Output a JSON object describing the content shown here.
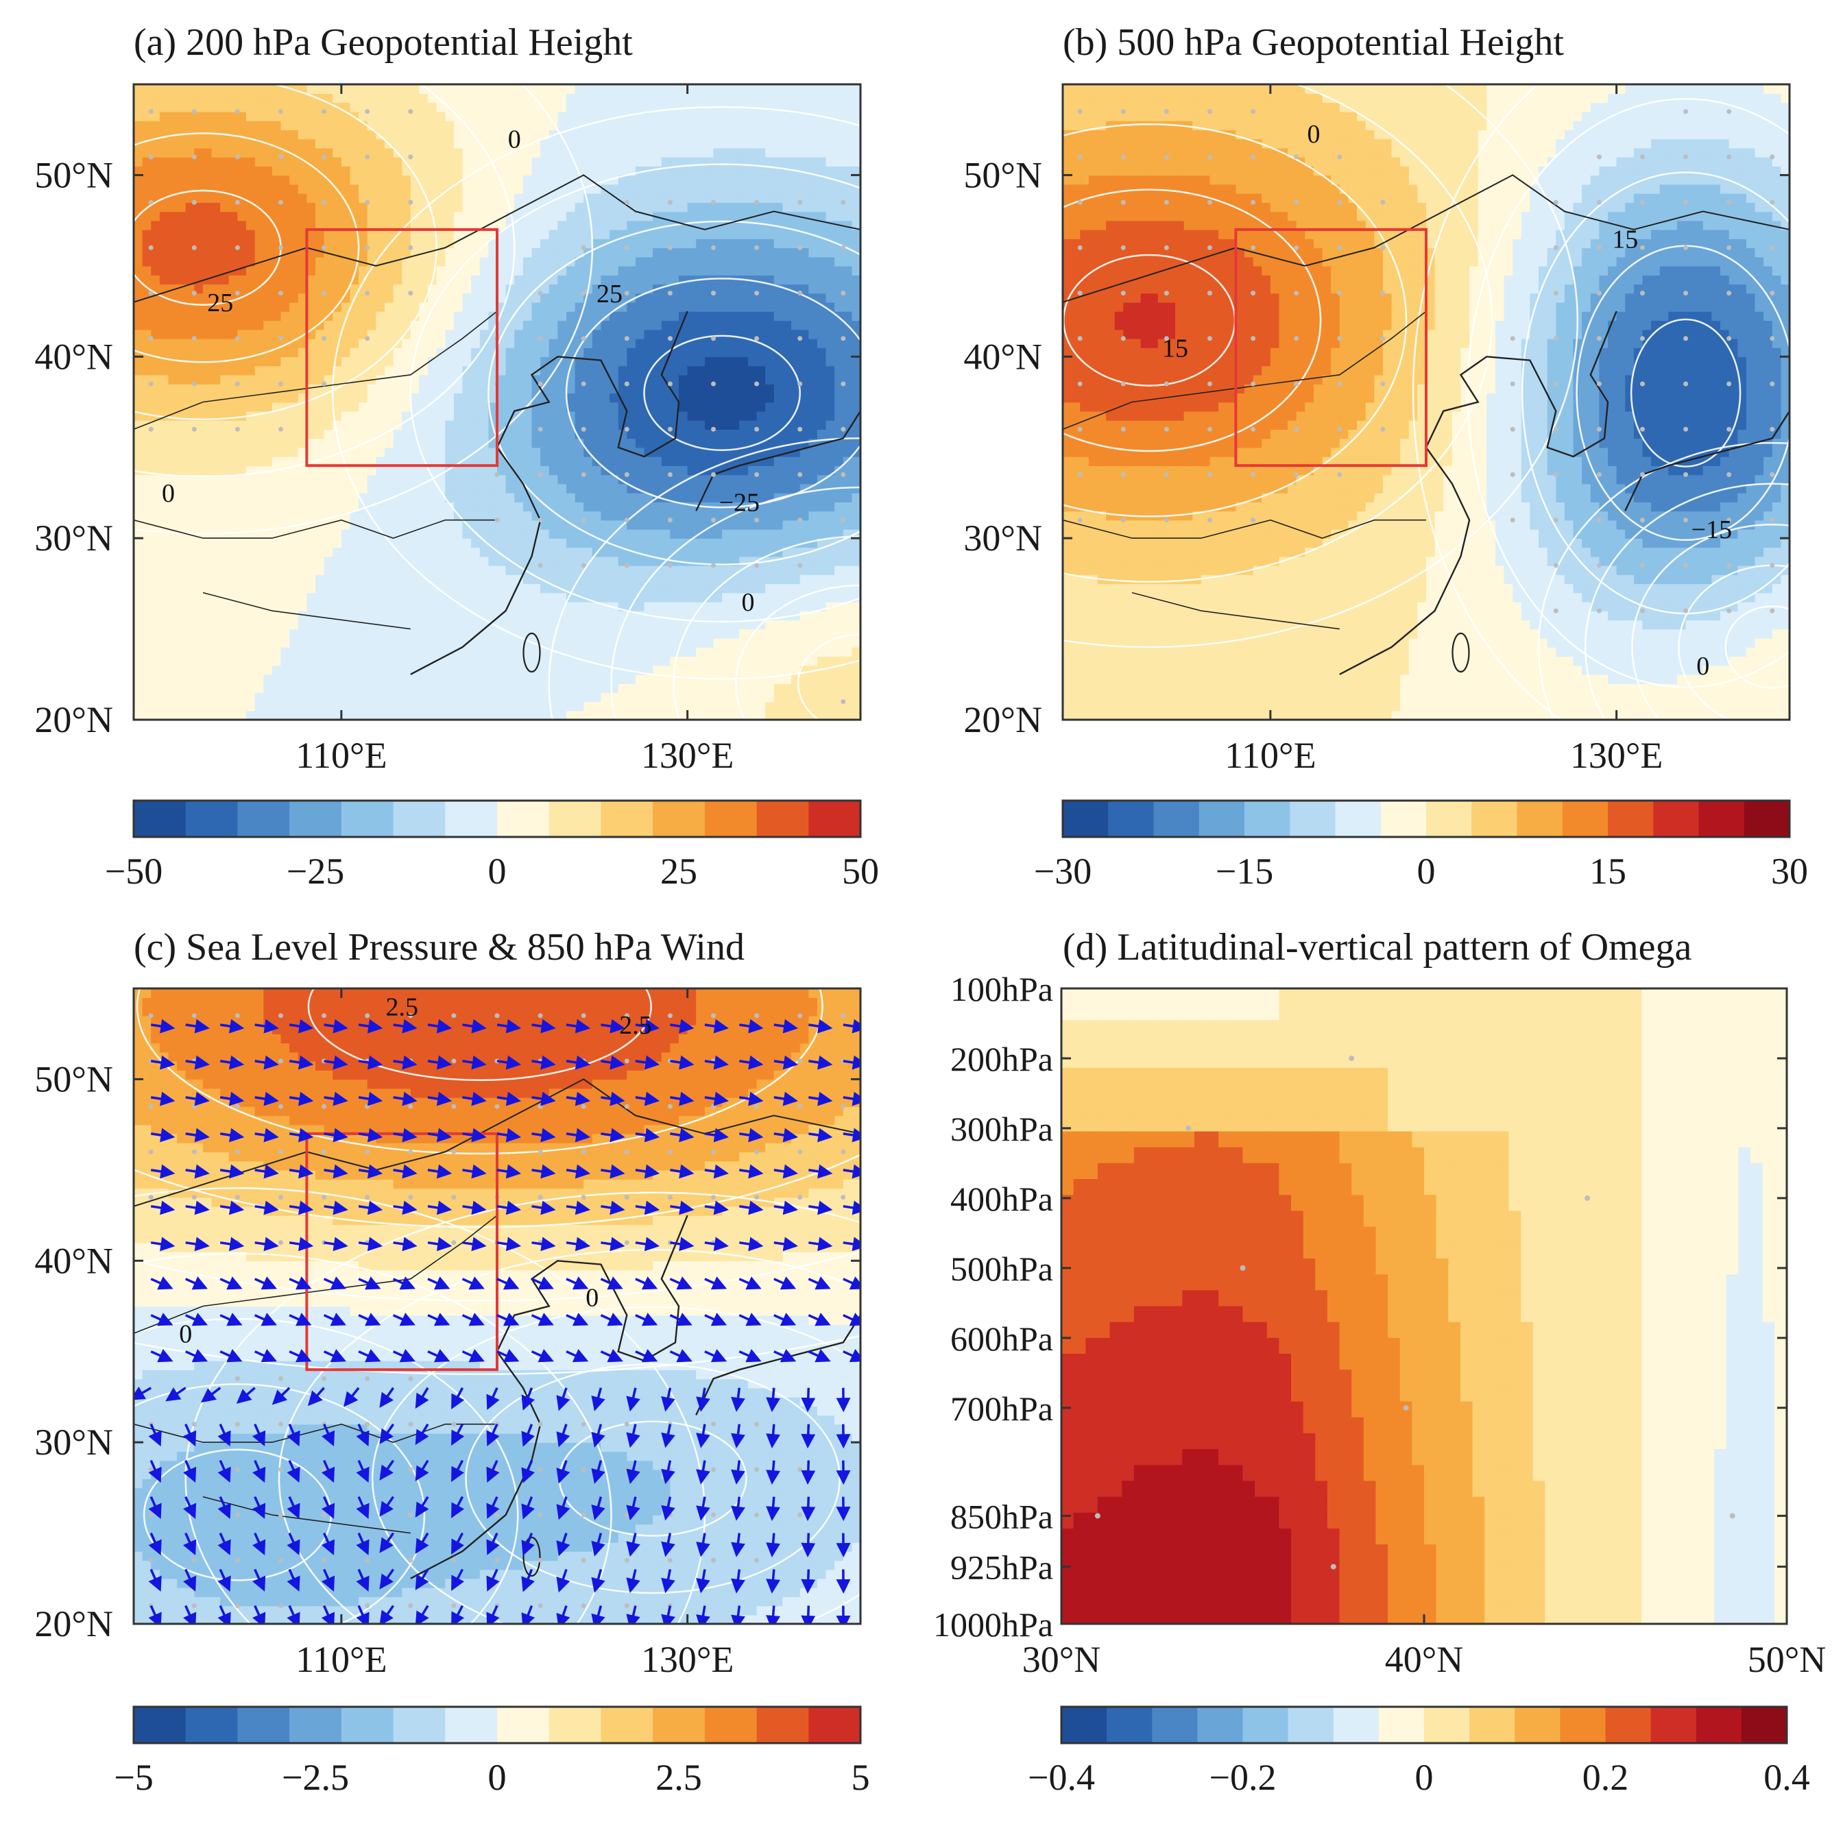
{
  "palette": {
    "ten": [
      "#1f4e98",
      "#2f68b2",
      "#4a86c6",
      "#6aa5d8",
      "#8ec3e8",
      "#b5daf2",
      "#dbeefa",
      "#fff8dc",
      "#fde8a8",
      "#fbcf72",
      "#f7ad43",
      "#f28a2c",
      "#e45a24",
      "#cf2e25"
    ],
    "seven": [
      "#1f4e98",
      "#2f68b2",
      "#4a86c6",
      "#6aa5d8",
      "#8ec3e8",
      "#b5daf2",
      "#dbeefa",
      "#fff8dc",
      "#fde8a8",
      "#fbcf72",
      "#f7ad43",
      "#f28a2c",
      "#e45a24",
      "#cf2e25",
      "#b3151e",
      "#8e0b18"
    ],
    "box": "#e53935",
    "wind": "#1515e0",
    "contour": "#ffffff",
    "dots": "#bdbdbd"
  },
  "chart_data": [
    {
      "id": "a",
      "type": "heatmap",
      "title": "(a) 200 hPa Geopotential Height",
      "xlim": [
        98,
        140
      ],
      "ylim": [
        20,
        55
      ],
      "xticks": [
        {
          "value": 110,
          "label": "110°E"
        },
        {
          "value": 130,
          "label": "130°E"
        }
      ],
      "yticks": [
        {
          "value": 20,
          "label": "20°N"
        },
        {
          "value": 30,
          "label": "30°N"
        },
        {
          "value": 40,
          "label": "40°N"
        },
        {
          "value": 50,
          "label": "50°N"
        }
      ],
      "box": {
        "lon": [
          108,
          119
        ],
        "lat": [
          34,
          47
        ]
      },
      "centers": [
        {
          "lon": 102,
          "lat": 46,
          "value": 38,
          "sx": 10,
          "sy": 7
        },
        {
          "lon": 132,
          "lat": 38,
          "value": -45,
          "sx": 10,
          "sy": 7
        },
        {
          "lon": 140,
          "lat": 22,
          "value": 12,
          "sx": 8,
          "sy": 6
        }
      ],
      "contour_labels": [
        {
          "text": "25",
          "lon": 103,
          "lat": 42.5
        },
        {
          "text": "0",
          "lon": 120,
          "lat": 51.5
        },
        {
          "text": "25",
          "lon": 125.5,
          "lat": 43
        },
        {
          "text": "0",
          "lon": 100,
          "lat": 32
        },
        {
          "text": "−25",
          "lon": 133,
          "lat": 31.5
        },
        {
          "text": "0",
          "lon": 133.5,
          "lat": 26
        }
      ],
      "colorbar": {
        "min": -50,
        "max": 50,
        "levels": 14,
        "ticks": [
          {
            "value": -50,
            "label": "−50"
          },
          {
            "value": -25,
            "label": "−25"
          },
          {
            "value": 0,
            "label": "0"
          },
          {
            "value": 25,
            "label": "25"
          },
          {
            "value": 50,
            "label": "50"
          }
        ]
      }
    },
    {
      "id": "b",
      "type": "heatmap",
      "title": "(b) 500 hPa Geopotential Height",
      "xlim": [
        98,
        140
      ],
      "ylim": [
        20,
        55
      ],
      "xticks": [
        {
          "value": 110,
          "label": "110°E"
        },
        {
          "value": 130,
          "label": "130°E"
        }
      ],
      "yticks": [
        {
          "value": 20,
          "label": "20°N"
        },
        {
          "value": 30,
          "label": "30°N"
        },
        {
          "value": 40,
          "label": "40°N"
        },
        {
          "value": 50,
          "label": "50°N"
        }
      ],
      "box": {
        "lon": [
          108,
          119
        ],
        "lat": [
          34,
          47
        ]
      },
      "centers": [
        {
          "lon": 103,
          "lat": 42,
          "value": 19,
          "sx": 11,
          "sy": 8
        },
        {
          "lon": 134,
          "lat": 38,
          "value": -26,
          "sx": 7,
          "sy": 9
        },
        {
          "lon": 139,
          "lat": 24,
          "value": 3,
          "sx": 6,
          "sy": 5
        }
      ],
      "contour_labels": [
        {
          "text": "0",
          "lon": 112.5,
          "lat": 51.8
        },
        {
          "text": "15",
          "lon": 104.5,
          "lat": 40
        },
        {
          "text": "15",
          "lon": 130.5,
          "lat": 46
        },
        {
          "text": "−15",
          "lon": 135.5,
          "lat": 30
        },
        {
          "text": "0",
          "lon": 135,
          "lat": 22.5
        }
      ],
      "colorbar": {
        "min": -30,
        "max": 30,
        "levels": 16,
        "ticks": [
          {
            "value": -30,
            "label": "−30"
          },
          {
            "value": -15,
            "label": "−15"
          },
          {
            "value": 0,
            "label": "0"
          },
          {
            "value": 15,
            "label": "15"
          },
          {
            "value": 30,
            "label": "30"
          }
        ]
      }
    },
    {
      "id": "c",
      "type": "heatmap",
      "title": "(c) Sea Level Pressure & 850 hPa Wind",
      "xlim": [
        98,
        140
      ],
      "ylim": [
        20,
        55
      ],
      "xticks": [
        {
          "value": 110,
          "label": "110°E"
        },
        {
          "value": 130,
          "label": "130°E"
        }
      ],
      "yticks": [
        {
          "value": 20,
          "label": "20°N"
        },
        {
          "value": 30,
          "label": "30°N"
        },
        {
          "value": 40,
          "label": "40°N"
        },
        {
          "value": 50,
          "label": "50°N"
        }
      ],
      "box": {
        "lon": [
          108,
          119
        ],
        "lat": [
          34,
          47
        ]
      },
      "centers": [
        {
          "lon": 118,
          "lat": 54,
          "value": 4.2,
          "sx": 22,
          "sy": 9
        },
        {
          "lon": 104,
          "lat": 26,
          "value": -1.6,
          "sx": 12,
          "sy": 8
        },
        {
          "lon": 128,
          "lat": 28,
          "value": -1.3,
          "sx": 12,
          "sy": 7
        }
      ],
      "contour_labels": [
        {
          "text": "2.5",
          "lon": 113.5,
          "lat": 53.5
        },
        {
          "text": "2.5",
          "lon": 127,
          "lat": 52.5
        },
        {
          "text": "0",
          "lon": 101,
          "lat": 35.5
        },
        {
          "text": "0",
          "lon": 124.5,
          "lat": 37.5
        }
      ],
      "colorbar": {
        "min": -5,
        "max": 5,
        "levels": 14,
        "ticks": [
          {
            "value": -5,
            "label": "−5"
          },
          {
            "value": -2.5,
            "label": "−2.5"
          },
          {
            "value": 0,
            "label": "0"
          },
          {
            "value": 2.5,
            "label": "2.5"
          },
          {
            "value": 5,
            "label": "5"
          }
        ]
      }
    },
    {
      "id": "d",
      "type": "heatmap",
      "title": "(d) Latitudinal-vertical pattern of Omega",
      "xlim": [
        30,
        50
      ],
      "xticks": [
        {
          "value": 30,
          "label": "30°N"
        },
        {
          "value": 40,
          "label": "40°N"
        },
        {
          "value": 50,
          "label": "50°N"
        }
      ],
      "ylevels": [
        {
          "value": 100,
          "label": "100hPa"
        },
        {
          "value": 200,
          "label": "200hPa"
        },
        {
          "value": 300,
          "label": "300hPa"
        },
        {
          "value": 400,
          "label": "400hPa"
        },
        {
          "value": 500,
          "label": "500hPa"
        },
        {
          "value": 600,
          "label": "600hPa"
        },
        {
          "value": 700,
          "label": "700hPa"
        },
        {
          "value": 850,
          "label": "850hPa"
        },
        {
          "value": 925,
          "label": "925hPa"
        },
        {
          "value": 1000,
          "label": "1000hPa"
        }
      ],
      "profile_by_latitude": [
        {
          "lat": 30,
          "max": 0.31
        },
        {
          "lat": 32,
          "max": 0.33
        },
        {
          "lat": 34,
          "max": 0.34
        },
        {
          "lat": 36,
          "max": 0.32
        },
        {
          "lat": 38,
          "max": 0.24
        },
        {
          "lat": 40,
          "max": 0.16
        },
        {
          "lat": 42,
          "max": 0.09
        },
        {
          "lat": 44,
          "max": 0.03
        },
        {
          "lat": 46,
          "max": 0.0
        },
        {
          "lat": 48,
          "max": -0.05
        },
        {
          "lat": 49,
          "max": -0.09
        },
        {
          "lat": 50,
          "max": -0.04
        }
      ],
      "colorbar": {
        "min": -0.4,
        "max": 0.4,
        "levels": 16,
        "ticks": [
          {
            "value": -0.4,
            "label": "−0.4"
          },
          {
            "value": -0.2,
            "label": "−0.2"
          },
          {
            "value": 0,
            "label": "0"
          },
          {
            "value": 0.2,
            "label": "0.2"
          },
          {
            "value": 0.4,
            "label": "0.4"
          }
        ]
      }
    }
  ]
}
